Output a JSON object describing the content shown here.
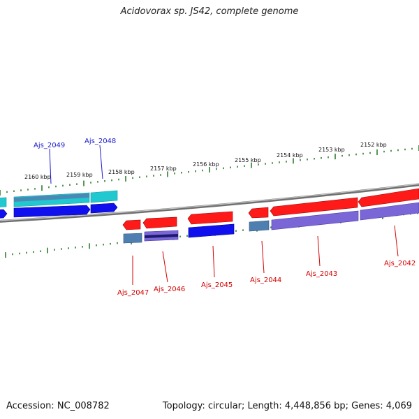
{
  "title": "Acidovorax sp. JS42, complete genome",
  "footer": {
    "accession": "Accession: NC_008782",
    "summary": "Topology: circular; Length: 4,448,856 bp; Genes: 4,069"
  },
  "colors": {
    "backbone": "#8a8a8a",
    "tick": "#2e7d2e",
    "label_upper": "#1a1acc",
    "label_lower": "#d40000",
    "red_gene": "#ff1a1a",
    "blue_gene": "#1010ee",
    "cyan_gene": "#22c8d0",
    "steel_gene": "#4f7fb0",
    "purple_gene": "#7a66d6",
    "navy_gene": "#1a1a6e"
  },
  "ticks": [
    {
      "label": "2160 kbp"
    },
    {
      "label": "2159 kbp"
    },
    {
      "label": "2158 kbp"
    },
    {
      "label": "2157 kbp"
    },
    {
      "label": "2156 kbp"
    },
    {
      "label": "2155 kbp"
    },
    {
      "label": "2154 kbp"
    },
    {
      "label": "2153 kbp"
    },
    {
      "label": "2152 kbp"
    }
  ],
  "genes_upper": [
    {
      "name": "Ajs_2049"
    },
    {
      "name": "Ajs_2048"
    }
  ],
  "genes_lower": [
    {
      "name": "Ajs_2047"
    },
    {
      "name": "Ajs_2046"
    },
    {
      "name": "Ajs_2045"
    },
    {
      "name": "Ajs_2044"
    },
    {
      "name": "Ajs_2043"
    },
    {
      "name": "Ajs_2042"
    }
  ]
}
